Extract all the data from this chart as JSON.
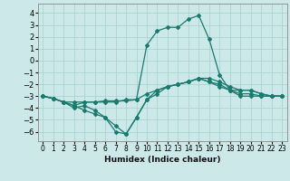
{
  "xlabel": "Humidex (Indice chaleur)",
  "ylabel": "",
  "background_color": "#cce8e8",
  "grid_color": "#aad4d4",
  "line_color": "#1a7a6e",
  "xlim": [
    -0.5,
    23.5
  ],
  "ylim": [
    -6.8,
    4.8
  ],
  "xticks": [
    0,
    1,
    2,
    3,
    4,
    5,
    6,
    7,
    8,
    9,
    10,
    11,
    12,
    13,
    14,
    15,
    16,
    17,
    18,
    19,
    20,
    21,
    22,
    23
  ],
  "yticks": [
    -6,
    -5,
    -4,
    -3,
    -2,
    -1,
    0,
    1,
    2,
    3,
    4
  ],
  "lines": [
    {
      "x": [
        0,
        1,
        2,
        3,
        4,
        5,
        6,
        7,
        8,
        9,
        10,
        11,
        12,
        13,
        14,
        15,
        16,
        17,
        18,
        19,
        20,
        21,
        22,
        23
      ],
      "y": [
        -3.0,
        -3.2,
        -3.5,
        -3.5,
        -3.5,
        -3.5,
        -3.4,
        -3.4,
        -3.4,
        -3.3,
        -2.8,
        -2.5,
        -2.2,
        -2.0,
        -1.8,
        -1.5,
        -1.5,
        -1.8,
        -2.2,
        -2.5,
        -2.5,
        -2.8,
        -3.0,
        -3.0
      ]
    },
    {
      "x": [
        0,
        1,
        2,
        3,
        4,
        5,
        6,
        7,
        8,
        9,
        10,
        11,
        12,
        13,
        14,
        15,
        16,
        17,
        18,
        19,
        20,
        21,
        22,
        23
      ],
      "y": [
        -3.0,
        -3.2,
        -3.5,
        -3.8,
        -4.2,
        -4.5,
        -4.8,
        -6.0,
        -6.2,
        -4.8,
        -3.3,
        -2.5,
        -2.2,
        -2.0,
        -1.8,
        -1.5,
        -1.8,
        -2.0,
        -2.5,
        -2.8,
        -2.8,
        -3.0,
        -3.0,
        -3.0
      ]
    },
    {
      "x": [
        0,
        1,
        2,
        3,
        4,
        5,
        6,
        7,
        8,
        9,
        10,
        11,
        12,
        13,
        14,
        15,
        16,
        17,
        18,
        19,
        20,
        21,
        22,
        23
      ],
      "y": [
        -3.0,
        -3.2,
        -3.5,
        -4.0,
        -3.8,
        -4.2,
        -4.8,
        -5.5,
        -6.2,
        -4.8,
        -3.3,
        -2.8,
        -2.2,
        -2.0,
        -1.8,
        -1.5,
        -1.8,
        -2.2,
        -2.5,
        -3.0,
        -3.0,
        -3.0,
        -3.0,
        -3.0
      ]
    },
    {
      "x": [
        0,
        1,
        2,
        3,
        4,
        5,
        6,
        7,
        8,
        9,
        10,
        11,
        12,
        13,
        14,
        15,
        16,
        17,
        18,
        19,
        20,
        21,
        22,
        23
      ],
      "y": [
        -3.0,
        -3.2,
        -3.5,
        -3.8,
        -3.5,
        -3.5,
        -3.5,
        -3.5,
        -3.3,
        -3.3,
        1.3,
        2.5,
        2.8,
        2.8,
        3.5,
        3.8,
        1.8,
        -1.2,
        -2.5,
        -2.5,
        -2.5,
        -2.8,
        -3.0,
        -3.0
      ]
    }
  ]
}
